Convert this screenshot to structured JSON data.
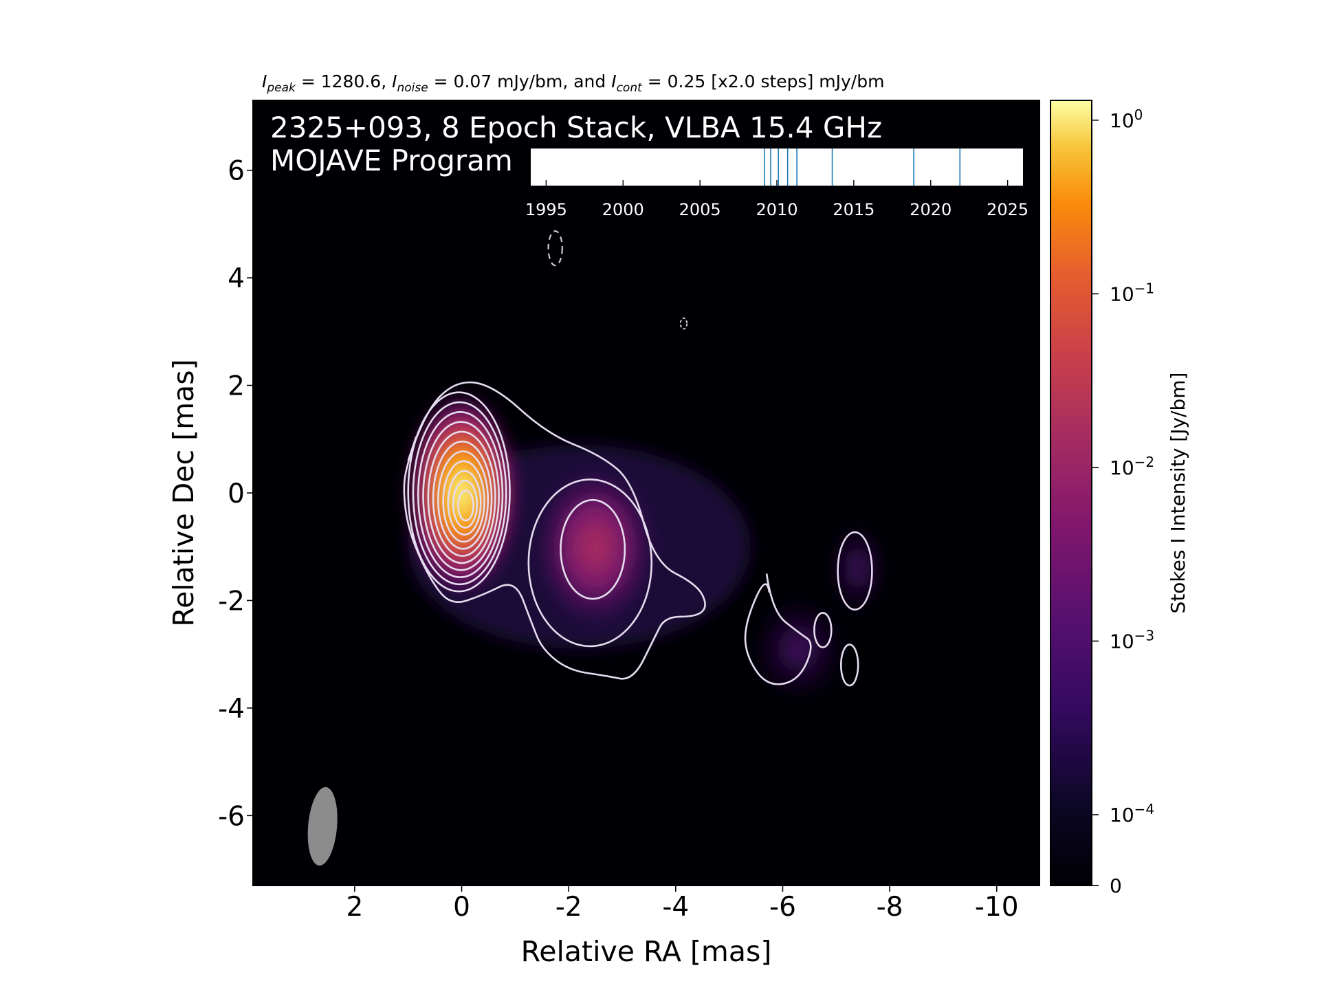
{
  "chart_data": {
    "type": "heatmap",
    "header": {
      "peak_label": "I",
      "peak_sub": "peak",
      "peak_text": " = 1280.6, ",
      "noise_label": "I",
      "noise_sub": "noise",
      "noise_text": " = 0.07 mJy/bm, and ",
      "cont_label": "I",
      "cont_sub": "cont",
      "cont_text": " = 0.25 [x2.0 steps] mJy/bm"
    },
    "overlay_title_line1": "2325+093, 8 Epoch Stack, VLBA 15.4 GHz",
    "overlay_title_line2": "MOJAVE Program",
    "xlabel": "Relative RA [mas]",
    "ylabel": "Relative Dec [mas]",
    "xlim": [
      3.9,
      -10.8
    ],
    "ylim": [
      -7.3,
      7.3
    ],
    "x_ticks": [
      {
        "value": 2,
        "label": "2"
      },
      {
        "value": 0,
        "label": "0"
      },
      {
        "value": -2,
        "label": "-2"
      },
      {
        "value": -4,
        "label": "-4"
      },
      {
        "value": -6,
        "label": "-6"
      },
      {
        "value": -8,
        "label": "-8"
      },
      {
        "value": -10,
        "label": "-10"
      }
    ],
    "y_ticks": [
      {
        "value": 6,
        "label": "6"
      },
      {
        "value": 4,
        "label": "4"
      },
      {
        "value": 2,
        "label": "2"
      },
      {
        "value": 0,
        "label": "0"
      },
      {
        "value": -2,
        "label": "-2"
      },
      {
        "value": -4,
        "label": "-4"
      },
      {
        "value": -6,
        "label": "-6"
      }
    ],
    "colorbar": {
      "label": "Stokes I Intensity [Jy/bm]",
      "colormap": "inferno",
      "scale": "log",
      "range": [
        0,
        1.3
      ],
      "ticks": [
        {
          "value": 1,
          "label": "10",
          "exp": "0"
        },
        {
          "value": 0.1,
          "label": "10",
          "exp": "−1"
        },
        {
          "value": 0.01,
          "label": "10",
          "exp": "−2"
        },
        {
          "value": 0.001,
          "label": "10",
          "exp": "−3"
        },
        {
          "value": 0.0001,
          "label": "10",
          "exp": "−4"
        },
        {
          "value": 0,
          "label": "0",
          "exp": ""
        }
      ]
    },
    "components": [
      {
        "ra": 0.0,
        "dec": 0.0,
        "peak_jy": 1.28
      },
      {
        "ra": -2.5,
        "dec": -1.0,
        "peak_jy": 0.004
      },
      {
        "ra": -7.4,
        "dec": -1.4,
        "peak_jy": 0.0006
      },
      {
        "ra": -6.3,
        "dec": -2.9,
        "peak_jy": 0.0004
      }
    ],
    "contour_levels_mjy": [
      0.25,
      0.5,
      1,
      2,
      4,
      8,
      16,
      32,
      64,
      128,
      256,
      512,
      1024
    ],
    "beam": {
      "ra": 2.6,
      "dec": -6.2,
      "major_mas": 1.2,
      "minor_mas": 0.5,
      "pa_deg": -5
    },
    "epoch_timeline": {
      "xlim": [
        1994,
        2026
      ],
      "tick_labels": [
        "1995",
        "2000",
        "2005",
        "2010",
        "2015",
        "2020",
        "2025"
      ],
      "tick_values": [
        1995,
        2000,
        2005,
        2010,
        2015,
        2020,
        2025
      ],
      "epochs": [
        2009.2,
        2009.6,
        2010.1,
        2010.7,
        2011.3,
        2013.6,
        2018.9,
        2021.9
      ]
    },
    "colors": {
      "background": "#000004",
      "contour": "#e6dcef",
      "epoch_line": "#1f77b4",
      "beam": "#8c8c8c"
    }
  }
}
